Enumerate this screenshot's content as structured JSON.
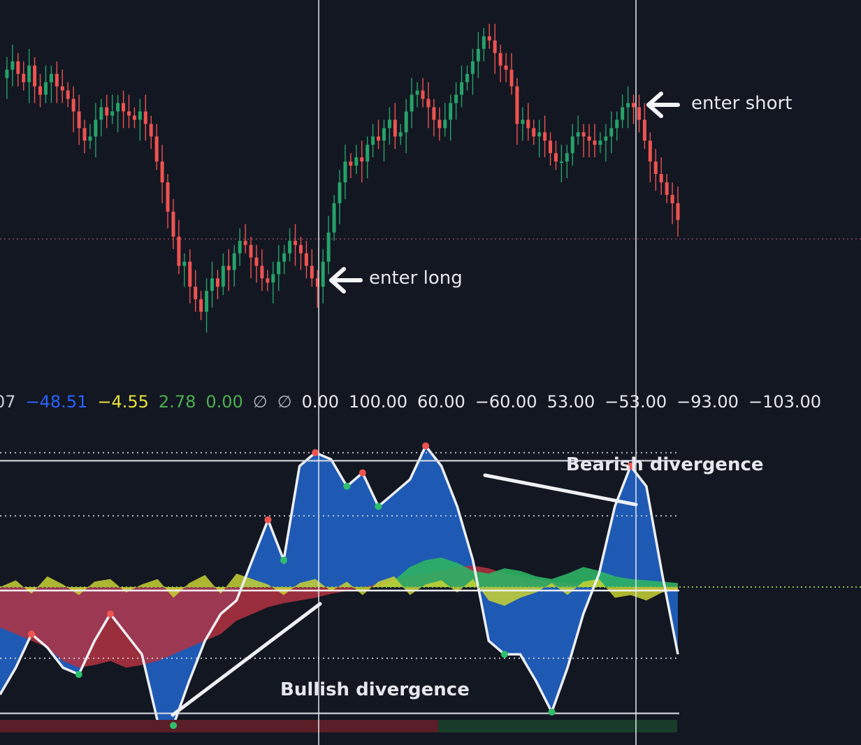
{
  "colors": {
    "background": "#131722",
    "candle_up": "#26a269",
    "candle_down": "#ef5350",
    "wave_blue": "#1e5ab4",
    "wave_red": "#b43241",
    "wave_yellow": "#c8d232",
    "wave_green": "#2eb364",
    "line_white": "#eef0f4",
    "dot_red": "#ef5350",
    "dot_green": "#2fbf6a"
  },
  "indicator_values": [
    {
      "text": "07",
      "color": "#c9ccd4"
    },
    {
      "text": "−48.51",
      "color": "#2962ff"
    },
    {
      "text": "−4.55",
      "color": "#e8e23a"
    },
    {
      "text": "2.78",
      "color": "#4caf50"
    },
    {
      "text": "0.00",
      "color": "#4caf50"
    },
    {
      "text": "∅",
      "color": "#b2b5be"
    },
    {
      "text": "∅",
      "color": "#b2b5be"
    },
    {
      "text": "0.00",
      "color": "#e6e8ee"
    },
    {
      "text": "100.00",
      "color": "#e6e8ee"
    },
    {
      "text": "60.00",
      "color": "#e6e8ee"
    },
    {
      "text": "−60.00",
      "color": "#e6e8ee"
    },
    {
      "text": "53.00",
      "color": "#e6e8ee"
    },
    {
      "text": "−53.00",
      "color": "#e6e8ee"
    },
    {
      "text": "−93.00",
      "color": "#e6e8ee"
    },
    {
      "text": "−103.00",
      "color": "#e6e8ee"
    }
  ],
  "annotations": {
    "enter_long": "enter long",
    "enter_short": "enter short",
    "bearish": "Bearish divergence",
    "bullish": "Bullish divergence"
  },
  "chart_data": [
    {
      "type": "candlestick",
      "title": "",
      "series": [
        {
          "name": "",
          "values": [
            100,
            102,
            104,
            101,
            99,
            103,
            98,
            96,
            99,
            101,
            98,
            97,
            95,
            92,
            88,
            85,
            86,
            90,
            93,
            91,
            92,
            94,
            92,
            91,
            90,
            92,
            89,
            86,
            80,
            75,
            68,
            62,
            55,
            56,
            50,
            47,
            44,
            49,
            52,
            50,
            55,
            54,
            58,
            61,
            60,
            57,
            55,
            52,
            51,
            53,
            56,
            58,
            61,
            60,
            58,
            55,
            52,
            50,
            56,
            63,
            70,
            75,
            80,
            79,
            81,
            80,
            84,
            86,
            85,
            88,
            90,
            86,
            87,
            92,
            96,
            97,
            95,
            93,
            90,
            88,
            90,
            94,
            96,
            99,
            101,
            104,
            107,
            110,
            109,
            106,
            103,
            102,
            98,
            89,
            90,
            88,
            86,
            87,
            85,
            82,
            80,
            80,
            82,
            86,
            87,
            86,
            85,
            84,
            85,
            86,
            88,
            90,
            93,
            94,
            93,
            90,
            85,
            80,
            77,
            75,
            72,
            70,
            66
          ]
        }
      ],
      "ylim": [
        40,
        112
      ]
    },
    {
      "type": "area",
      "title": "",
      "hlines": [
        100,
        94,
        53,
        -53,
        -94,
        -103
      ],
      "ylim": [
        -130,
        130
      ],
      "series": [
        {
          "name": "",
          "values": [
            -80,
            -60,
            -35,
            -45,
            -60,
            -65,
            -40,
            -20,
            -35,
            -50,
            -100,
            -103,
            -70,
            -40,
            -20,
            -10,
            20,
            50,
            20,
            90,
            100,
            95,
            75,
            85,
            60,
            70,
            80,
            105,
            90,
            60,
            20,
            -40,
            -50,
            -50,
            -70,
            -93,
            -60,
            -20,
            10,
            60,
            90,
            75,
            10,
            -50
          ]
        },
        {
          "name": "",
          "values": [
            -30,
            -35,
            -40,
            -45,
            -55,
            -60,
            -58,
            -55,
            -60,
            -58,
            -55,
            -50,
            -45,
            -40,
            -35,
            -25,
            -20,
            -15,
            -12,
            -10,
            -8,
            -5,
            -3,
            0,
            2,
            5,
            8,
            10,
            12,
            15,
            16,
            14,
            10,
            8,
            6,
            4,
            3,
            2,
            1,
            0,
            -1,
            -2,
            -3,
            -2
          ]
        },
        {
          "name": "",
          "values": [
            0,
            5,
            -5,
            8,
            2,
            -6,
            4,
            6,
            -4,
            2,
            6,
            -8,
            3,
            9,
            -5,
            10,
            6,
            2,
            -6,
            3,
            6,
            -3,
            4,
            -6,
            4,
            8,
            -6,
            2,
            5,
            -4,
            6,
            -10,
            -14,
            -8,
            -4,
            3,
            -6,
            4,
            6,
            -8,
            -6,
            -10,
            -4,
            -2
          ]
        },
        {
          "name": "",
          "values": [
            0,
            0,
            0,
            0,
            0,
            0,
            0,
            0,
            0,
            0,
            0,
            0,
            0,
            0,
            0,
            0,
            0,
            0,
            0,
            0,
            0,
            0,
            0,
            0,
            0,
            5,
            15,
            20,
            22,
            18,
            12,
            10,
            14,
            12,
            8,
            6,
            10,
            15,
            12,
            8,
            6,
            5,
            4,
            3
          ]
        }
      ]
    }
  ]
}
